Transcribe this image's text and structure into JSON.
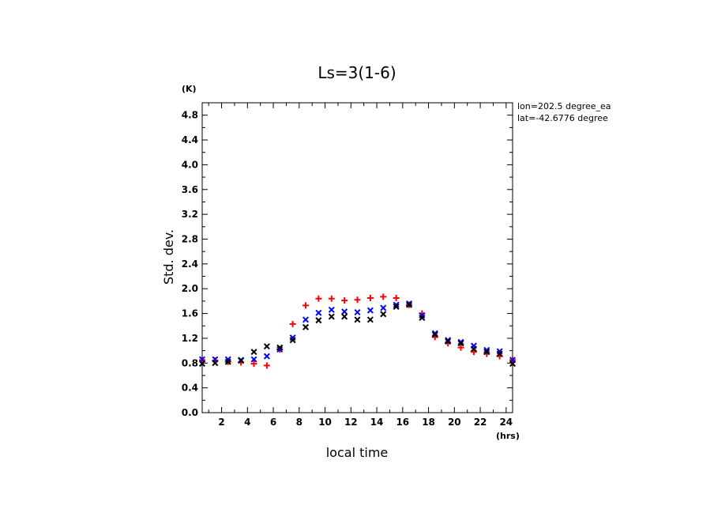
{
  "chart_data": {
    "type": "scatter",
    "title": "Ls=3(1-6)",
    "xlabel": "local time",
    "ylabel": "Std. dev.",
    "x_unit": "(hrs)",
    "y_unit": "(K)",
    "xlim": [
      0.5,
      24.5
    ],
    "ylim": [
      0.0,
      5.0
    ],
    "x_ticks": [
      2,
      4,
      6,
      8,
      10,
      12,
      14,
      16,
      18,
      20,
      22,
      24
    ],
    "y_ticks": [
      0.0,
      0.4,
      0.8,
      1.2,
      1.6,
      2.0,
      2.4,
      2.8,
      3.2,
      3.6,
      4.0,
      4.4,
      4.8
    ],
    "annotations": [
      "lon=202.5 degree_ea",
      "lat=-42.6776 degree"
    ],
    "grid": false,
    "x": [
      0.5,
      1.5,
      2.5,
      3.5,
      4.5,
      5.5,
      6.5,
      7.5,
      8.5,
      9.5,
      10.5,
      11.5,
      12.5,
      13.5,
      14.5,
      15.5,
      16.5,
      17.5,
      18.5,
      19.5,
      20.5,
      21.5,
      22.5,
      23.5,
      24.5
    ],
    "series": [
      {
        "marker": "plus",
        "color": "#ff0000",
        "values": [
          0.85,
          0.84,
          0.82,
          0.81,
          0.79,
          0.76,
          1.02,
          1.43,
          1.73,
          1.84,
          1.84,
          1.81,
          1.82,
          1.85,
          1.87,
          1.85,
          1.74,
          1.6,
          1.22,
          1.12,
          1.05,
          0.98,
          0.95,
          0.91,
          0.85
        ]
      },
      {
        "marker": "x",
        "color": "#0000ff",
        "values": [
          0.86,
          0.86,
          0.86,
          0.85,
          0.86,
          0.91,
          1.02,
          1.21,
          1.5,
          1.61,
          1.66,
          1.63,
          1.62,
          1.65,
          1.69,
          1.74,
          1.76,
          1.57,
          1.28,
          1.17,
          1.14,
          1.08,
          1.01,
          0.99,
          0.85
        ]
      },
      {
        "marker": "x",
        "color": "#000000",
        "values": [
          0.79,
          0.8,
          0.82,
          0.84,
          0.98,
          1.07,
          1.05,
          1.17,
          1.38,
          1.49,
          1.55,
          1.55,
          1.5,
          1.5,
          1.59,
          1.71,
          1.74,
          1.53,
          1.26,
          1.15,
          1.12,
          1.03,
          0.98,
          0.95,
          0.79
        ]
      }
    ]
  }
}
